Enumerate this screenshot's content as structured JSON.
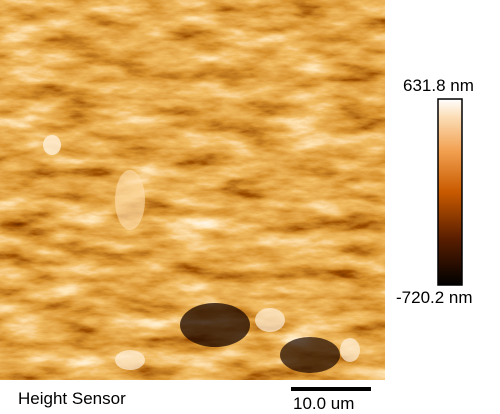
{
  "image": {
    "channel_label": "Height Sensor",
    "scale_bar_label": "10.0 um"
  },
  "colorbar": {
    "max_label": "631.8 nm",
    "min_label": "-720.2 nm"
  }
}
